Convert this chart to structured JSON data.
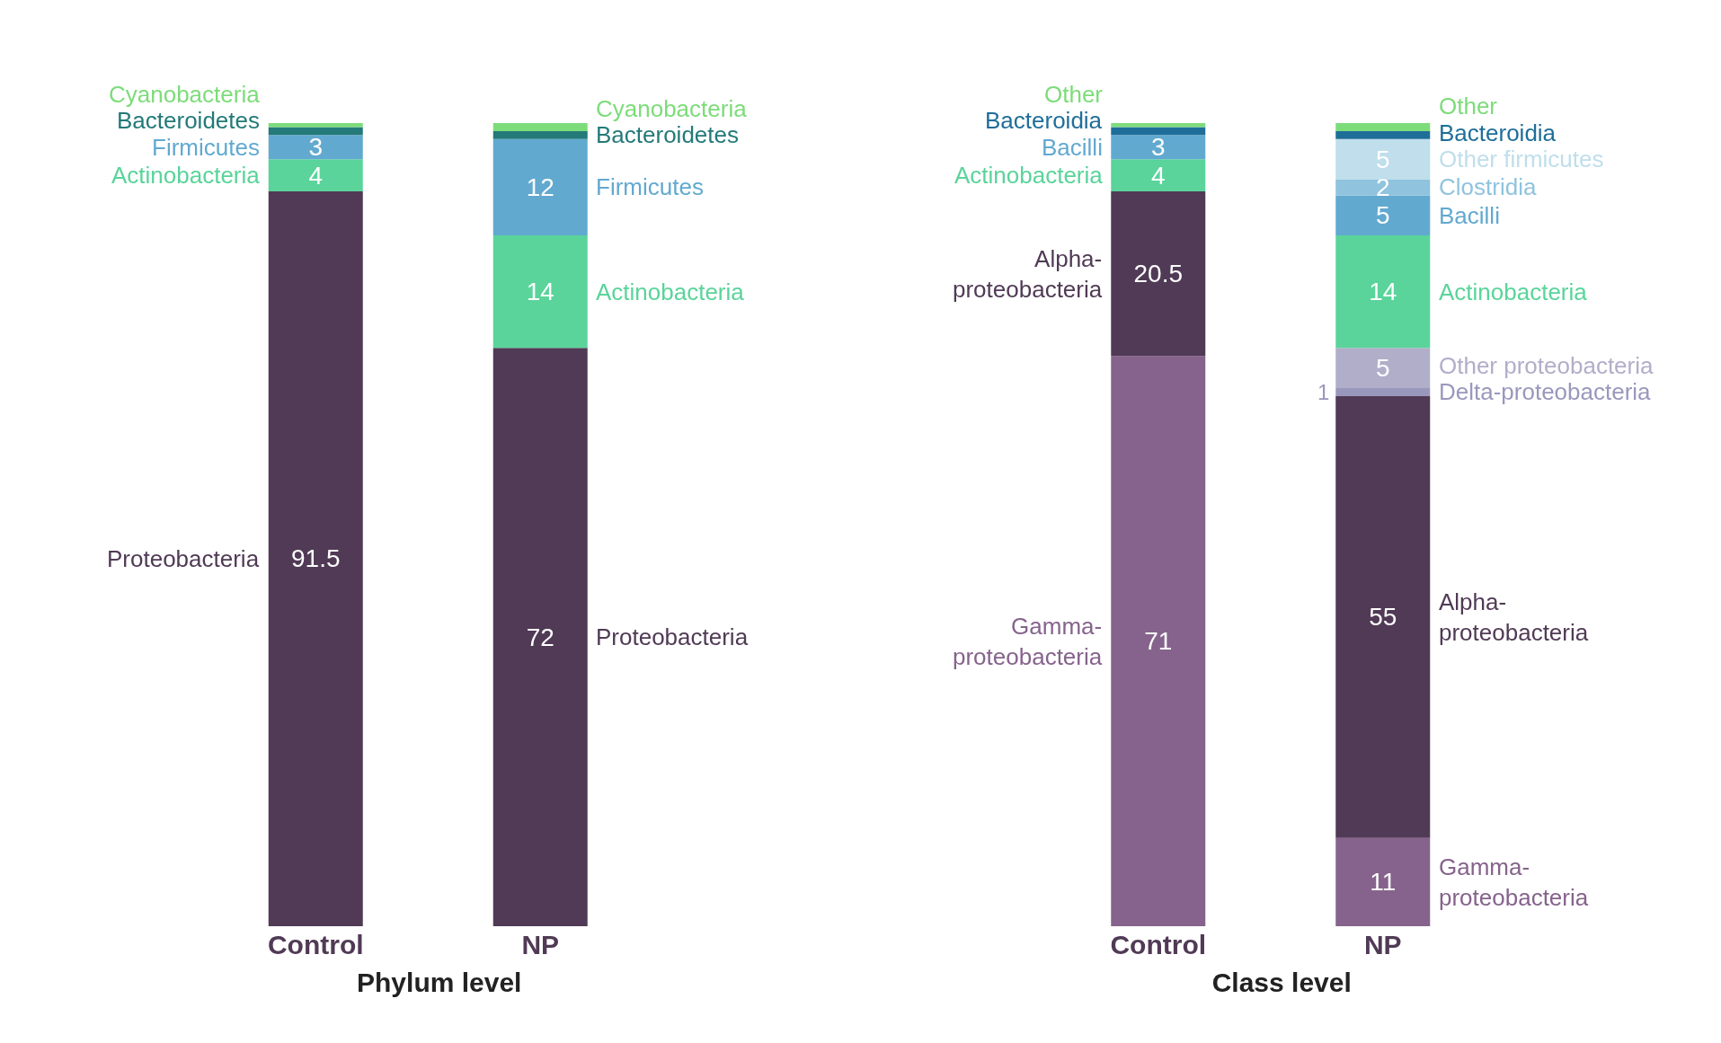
{
  "chart_data": [
    {
      "type": "bar",
      "stacked": true,
      "xlabel": "Phylum level",
      "categories": [
        "Control",
        "NP"
      ],
      "series": [
        {
          "name": "Proteobacteria",
          "color": "#503a55",
          "values": [
            91.5,
            72
          ],
          "value_labels": [
            "91.5",
            "72"
          ]
        },
        {
          "name": "Actinobacteria",
          "color": "#5ad49a",
          "values": [
            4,
            14
          ],
          "value_labels": [
            "4",
            "14"
          ]
        },
        {
          "name": "Firmicutes",
          "color": "#62a9d0",
          "values": [
            3,
            12
          ],
          "value_labels": [
            "3",
            "12"
          ]
        },
        {
          "name": "Bacteroidetes",
          "color": "#237a78",
          "values": [
            1,
            1
          ],
          "value_labels": [
            null,
            null
          ]
        },
        {
          "name": "Cyanobacteria",
          "color": "#7ddc7a",
          "values": [
            0.5,
            1
          ],
          "value_labels": [
            null,
            null
          ]
        }
      ]
    },
    {
      "type": "bar",
      "stacked": true,
      "xlabel": "Class level",
      "categories": [
        "Control",
        "NP"
      ],
      "series": [
        {
          "name": "Gamma-proteobacteria",
          "color": "#86638c",
          "values": [
            71,
            11
          ],
          "value_labels": [
            "71",
            "11"
          ]
        },
        {
          "name": "Alpha-proteobacteria",
          "color": "#503a55",
          "values": [
            20.5,
            55
          ],
          "value_labels": [
            "20.5",
            "55"
          ]
        },
        {
          "name": "Delta-proteobacteria",
          "color": "#9a97bd",
          "values": [
            null,
            1
          ],
          "value_labels": [
            null,
            "1"
          ]
        },
        {
          "name": "Other proteobacteria",
          "color": "#b1aec9",
          "values": [
            null,
            5
          ],
          "value_labels": [
            null,
            "5"
          ]
        },
        {
          "name": "Actinobacteria",
          "color": "#5ad49a",
          "values": [
            4,
            14
          ],
          "value_labels": [
            "4",
            "14"
          ]
        },
        {
          "name": "Bacilli",
          "color": "#62a9d0",
          "values": [
            3,
            5
          ],
          "value_labels": [
            "3",
            "5"
          ]
        },
        {
          "name": "Clostridia",
          "color": "#8fc3de",
          "values": [
            null,
            2
          ],
          "value_labels": [
            null,
            "2"
          ]
        },
        {
          "name": "Other firmicutes",
          "color": "#c0deeb",
          "values": [
            null,
            5
          ],
          "value_labels": [
            null,
            "5"
          ]
        },
        {
          "name": "Bacteroidia",
          "color": "#1f6e99",
          "values": [
            1,
            1
          ],
          "value_labels": [
            null,
            null
          ]
        },
        {
          "name": "Other",
          "color": "#7ddc7a",
          "values": [
            0.5,
            1
          ],
          "value_labels": [
            null,
            null
          ]
        }
      ]
    }
  ]
}
